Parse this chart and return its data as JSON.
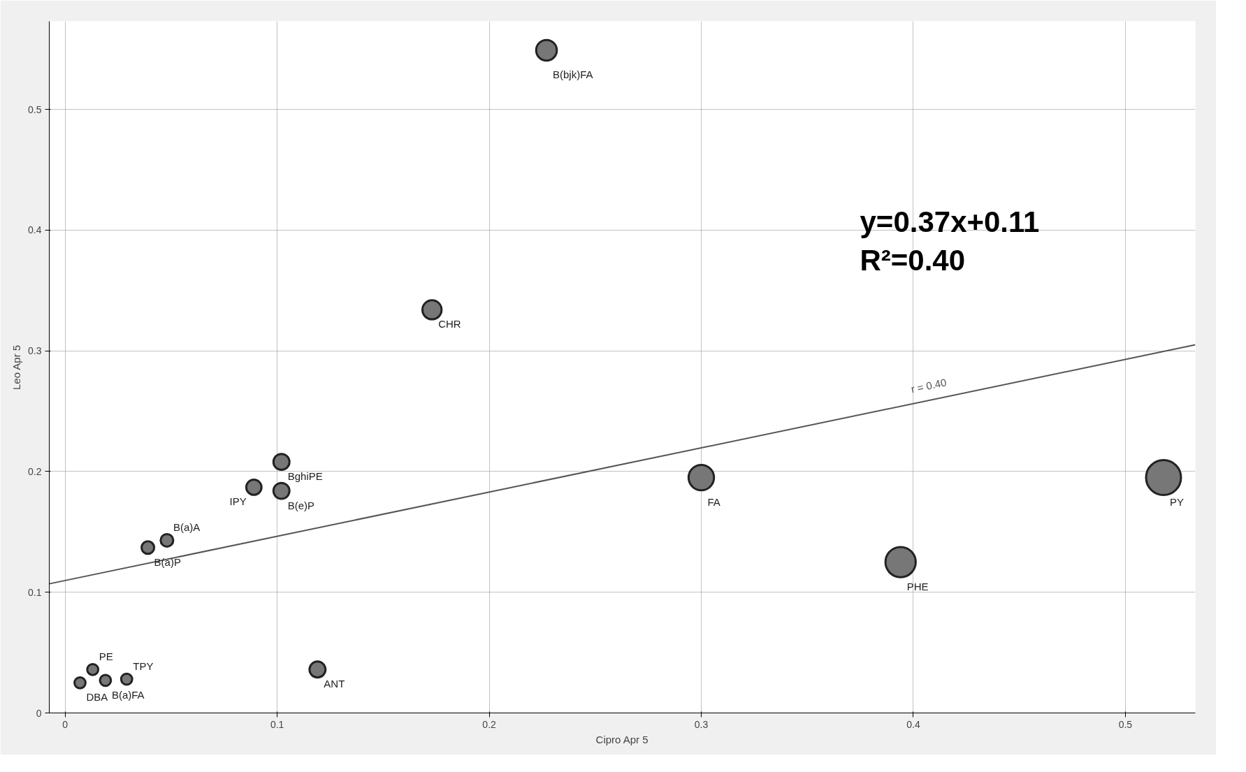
{
  "chart_data": {
    "type": "bubble",
    "xlabel": "Cipro Apr 5",
    "ylabel": "Leo Apr 5",
    "xlim": [
      -0.0075,
      0.533
    ],
    "ylim": [
      0,
      0.573
    ],
    "xticks": [
      0,
      0.1,
      0.2,
      0.3,
      0.4,
      0.5
    ],
    "yticks": [
      0,
      0.1,
      0.2,
      0.3,
      0.4,
      0.5
    ],
    "grid": true,
    "series": [
      {
        "marker": "circle",
        "color": "#777777",
        "x": [
          0.227,
          0.173,
          0.102,
          0.089,
          0.102,
          0.3,
          0.518,
          0.394,
          0.119,
          0.039,
          0.048,
          0.007,
          0.013,
          0.019,
          0.029
        ],
        "values": [
          0.549,
          0.334,
          0.208,
          0.187,
          0.184,
          0.195,
          0.195,
          0.125,
          0.036,
          0.137,
          0.143,
          0.025,
          0.036,
          0.027,
          0.028
        ],
        "sizes": [
          0.35,
          0.3,
          0.21,
          0.19,
          0.21,
          0.53,
          1,
          0.75,
          0.21,
          0.13,
          0.13,
          0.1,
          0.1,
          0.1,
          0.1
        ]
      },
      {
        "type": "line",
        "color": "#555555",
        "x": [
          -0.0075,
          0.533
        ],
        "values": [
          0.107,
          0.305
        ]
      }
    ],
    "annotations": [
      {
        "text": "B(bjk)FA",
        "x": 0.227,
        "y": 0.549
      },
      {
        "text": "CHR",
        "x": 0.173,
        "y": 0.334
      },
      {
        "text": "BghiPE",
        "x": 0.102,
        "y": 0.208
      },
      {
        "text": "IPY",
        "x": 0.089,
        "y": 0.187
      },
      {
        "text": "B(e)P",
        "x": 0.102,
        "y": 0.184
      },
      {
        "text": "FA",
        "x": 0.3,
        "y": 0.195
      },
      {
        "text": "PY",
        "x": 0.518,
        "y": 0.195
      },
      {
        "text": "PHE",
        "x": 0.394,
        "y": 0.125
      },
      {
        "text": "ANT",
        "x": 0.119,
        "y": 0.036
      },
      {
        "text": "B(a)P",
        "x": 0.039,
        "y": 0.137
      },
      {
        "text": "B(a)A",
        "x": 0.048,
        "y": 0.143
      },
      {
        "text": "DBA",
        "x": 0.007,
        "y": 0.025
      },
      {
        "text": "PE",
        "x": 0.013,
        "y": 0.036
      },
      {
        "text": "B(a)FA",
        "x": 0.019,
        "y": 0.027
      },
      {
        "text": "TPY",
        "x": 0.029,
        "y": 0.028
      },
      "y=0.37x+0.11",
      "R²=0.40",
      "r = 0.40"
    ]
  }
}
